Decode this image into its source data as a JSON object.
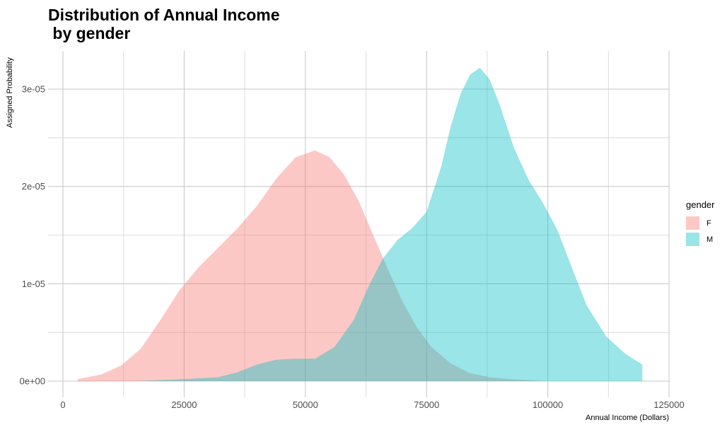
{
  "chart_data": {
    "type": "area",
    "title": "Distribution of Annual Income\n by gender",
    "xlabel": "Annual Income (Dollars)",
    "ylabel": "Assigned Probability",
    "xlim": [
      0,
      125000
    ],
    "ylim": [
      0,
      3.3e-05
    ],
    "x_ticks": [
      0,
      25000,
      50000,
      75000,
      100000,
      125000
    ],
    "x_tick_labels": [
      "0",
      "25000",
      "50000",
      "75000",
      "100000",
      "125000"
    ],
    "y_ticks": [
      0,
      1e-05,
      2e-05,
      3e-05
    ],
    "y_tick_labels": [
      "0e+00",
      "1e-05",
      "2e-05",
      "3e-05"
    ],
    "grid": true,
    "legend": {
      "title": "gender",
      "position": "right"
    },
    "series": [
      {
        "name": "F",
        "color": "#F8766D",
        "x": [
          3000,
          8000,
          12000,
          16000,
          20000,
          24000,
          28000,
          32000,
          36000,
          40000,
          44000,
          48000,
          52000,
          55000,
          58000,
          61000,
          64000,
          67000,
          70000,
          73000,
          76000,
          80000,
          84000,
          88000,
          92000,
          96000,
          100000
        ],
        "y": [
          2e-07,
          7e-07,
          1.6e-06,
          3.3e-06,
          6.2e-06,
          9.3e-06,
          1.17e-05,
          1.37e-05,
          1.57e-05,
          1.8e-05,
          2.08e-05,
          2.3e-05,
          2.37e-05,
          2.3e-05,
          2.12e-05,
          1.85e-05,
          1.5e-05,
          1.15e-05,
          8.2e-06,
          5.5e-06,
          3.5e-06,
          1.8e-06,
          8e-07,
          4e-07,
          2e-07,
          1e-07,
          0
        ]
      },
      {
        "name": "M",
        "color": "#00BFC4",
        "x": [
          15000,
          25000,
          32000,
          36000,
          40000,
          44000,
          48000,
          52000,
          56000,
          60000,
          63000,
          66000,
          69000,
          72000,
          75000,
          78000,
          80000,
          82000,
          84000,
          86000,
          88000,
          90000,
          93000,
          96000,
          99000,
          102000,
          105000,
          108000,
          112000,
          116000,
          119500
        ],
        "y": [
          0,
          2e-07,
          4e-07,
          9e-07,
          1.7e-06,
          2.2e-06,
          2.3e-06,
          2.3e-06,
          3.5e-06,
          6.3e-06,
          9.7e-06,
          1.26e-05,
          1.45e-05,
          1.57e-05,
          1.74e-05,
          2.2e-05,
          2.62e-05,
          2.95e-05,
          3.15e-05,
          3.22e-05,
          3.1e-05,
          2.85e-05,
          2.4e-05,
          2.07e-05,
          1.83e-05,
          1.55e-05,
          1.16e-05,
          7.8e-06,
          4.6e-06,
          2.8e-06,
          1.7e-06
        ]
      }
    ]
  }
}
